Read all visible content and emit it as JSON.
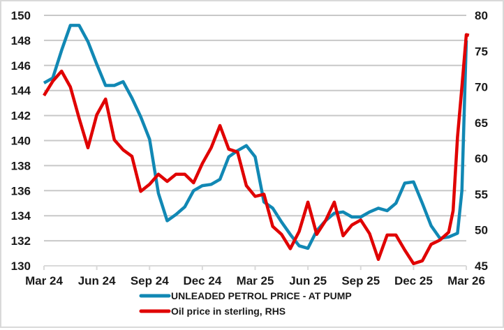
{
  "chart_data": {
    "type": "line",
    "title": "",
    "xlabel": "",
    "ylabel": "",
    "y2label": "",
    "grid": true,
    "legend_position": "bottom",
    "x_unit": "months since Mar 24",
    "xlim": [
      0,
      24
    ],
    "x_ticks": [
      {
        "x": 0,
        "label": "Mar 24"
      },
      {
        "x": 3,
        "label": "Jun 24"
      },
      {
        "x": 6,
        "label": "Sep 24"
      },
      {
        "x": 9,
        "label": "Dec 24"
      },
      {
        "x": 12,
        "label": "Mar 25"
      },
      {
        "x": 15,
        "label": "Jun 25"
      },
      {
        "x": 18,
        "label": "Sep 25"
      },
      {
        "x": 21,
        "label": "Dec 25"
      },
      {
        "x": 24,
        "label": "Mar 26"
      }
    ],
    "ylim": [
      130,
      150
    ],
    "y_ticks": [
      "130",
      "132",
      "134",
      "136",
      "138",
      "140",
      "142",
      "144",
      "146",
      "148",
      "150"
    ],
    "y2lim": [
      45,
      80
    ],
    "y2_ticks": [
      "45",
      "50",
      "55",
      "60",
      "65",
      "70",
      "75",
      "80"
    ],
    "series": [
      {
        "name": "UNLEADED PETROL PRICE - AT PUMP",
        "axis": "left",
        "color": "#1188b4",
        "x": [
          0,
          0.5,
          1,
          1.5,
          2,
          2.5,
          3,
          3.5,
          4,
          4.5,
          5,
          5.5,
          6,
          6.5,
          7,
          7.5,
          8,
          8.5,
          9,
          9.5,
          10,
          10.5,
          11,
          11.5,
          12,
          12.5,
          13,
          13.5,
          14,
          14.5,
          15,
          15.5,
          16,
          16.5,
          17,
          17.5,
          18,
          18.5,
          19,
          19.5,
          20,
          20.5,
          21,
          21.5,
          22,
          22.5,
          23,
          23.5,
          23.75,
          24
        ],
        "values": [
          144.6,
          145.0,
          147.2,
          149.2,
          149.2,
          147.9,
          146.1,
          144.4,
          144.4,
          144.7,
          143.4,
          141.9,
          140.1,
          135.8,
          133.6,
          134.1,
          134.7,
          136.0,
          136.4,
          136.5,
          136.9,
          138.7,
          139.2,
          139.6,
          138.7,
          135.1,
          134.6,
          133.5,
          132.5,
          131.6,
          131.4,
          132.8,
          133.6,
          134.2,
          134.3,
          133.9,
          133.9,
          134.3,
          134.6,
          134.4,
          135.0,
          136.6,
          136.7,
          135.0,
          133.2,
          132.2,
          132.3,
          132.6,
          136.0,
          148.0
        ]
      },
      {
        "name": "Oil price in sterling, RHS",
        "axis": "right",
        "color": "#e00000",
        "x": [
          0,
          0.5,
          1,
          1.5,
          2,
          2.5,
          3,
          3.5,
          4,
          4.5,
          5,
          5.5,
          6,
          6.5,
          7,
          7.5,
          8,
          8.5,
          9,
          9.5,
          10,
          10.5,
          11,
          11.5,
          12,
          12.5,
          13,
          13.5,
          14,
          14.5,
          15,
          15.5,
          16,
          16.5,
          17,
          17.5,
          18,
          18.5,
          19,
          19.5,
          20,
          20.5,
          21,
          21.5,
          22,
          22.5,
          23,
          23.25,
          23.5,
          23.75,
          24,
          24.15
        ],
        "values": [
          68.8,
          70.8,
          72.2,
          70.0,
          65.6,
          61.5,
          66.1,
          68.3,
          62.6,
          61.2,
          60.3,
          55.4,
          56.4,
          57.8,
          56.8,
          57.8,
          57.8,
          56.6,
          59.3,
          61.5,
          64.6,
          61.3,
          60.9,
          56.2,
          54.7,
          55.0,
          50.5,
          49.4,
          47.4,
          49.8,
          53.9,
          49.4,
          51.3,
          53.9,
          49.2,
          50.7,
          51.4,
          49.5,
          45.9,
          49.3,
          49.3,
          47.2,
          45.3,
          45.7,
          48.0,
          48.6,
          49.7,
          52.7,
          63.0,
          70.0,
          77.3,
          77.2
        ]
      }
    ]
  },
  "legend": {
    "items": [
      {
        "label": "UNLEADED PETROL PRICE - AT PUMP",
        "color": "#1188b4"
      },
      {
        "label": "Oil price in sterling, RHS",
        "color": "#e00000"
      }
    ]
  }
}
